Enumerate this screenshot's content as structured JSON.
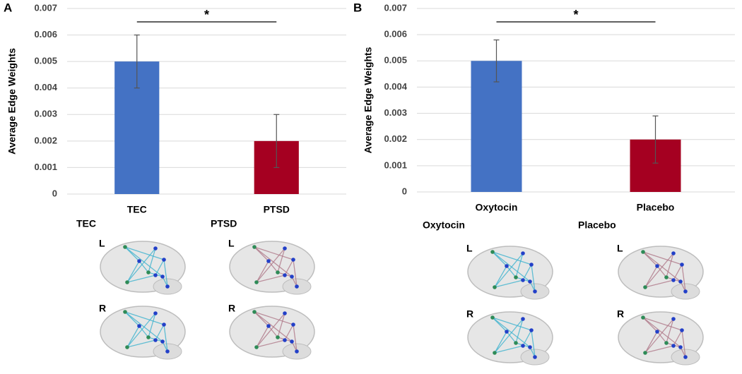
{
  "chart_data": [
    {
      "type": "bar",
      "panel": "A",
      "y_label": "Average Edge Weights",
      "categories": [
        "TEC",
        "PTSD"
      ],
      "values": [
        0.005,
        0.002
      ],
      "errors": [
        0.001,
        0.001
      ],
      "colors": [
        "#4472c4",
        "#a50021"
      ],
      "annotation": "*",
      "ylim": [
        0,
        0.007
      ],
      "yticks": [
        0,
        0.001,
        0.002,
        0.003,
        0.004,
        0.005,
        0.006,
        0.007
      ],
      "grid": true
    },
    {
      "type": "bar",
      "panel": "B",
      "y_label": "Average Edge Weights",
      "categories": [
        "Oxytocin",
        "Placebo"
      ],
      "values": [
        0.005,
        0.002
      ],
      "errors": [
        0.0008,
        0.0009
      ],
      "colors": [
        "#4472c4",
        "#a50021"
      ],
      "annotation": "*",
      "ylim": [
        0,
        0.007
      ],
      "yticks": [
        0,
        0.001,
        0.002,
        0.003,
        0.004,
        0.005,
        0.006,
        0.007
      ],
      "grid": true
    }
  ],
  "brain_maps": [
    {
      "title": "TEC",
      "views": [
        "L",
        "R"
      ]
    },
    {
      "title": "PTSD",
      "views": [
        "L",
        "R"
      ]
    },
    {
      "title": "Oxytocin",
      "views": [
        "L",
        "R"
      ]
    },
    {
      "title": "Placebo",
      "views": [
        "L",
        "R"
      ]
    }
  ]
}
